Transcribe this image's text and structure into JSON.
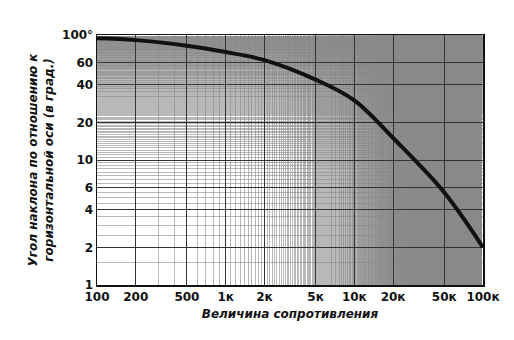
{
  "chart_data": {
    "type": "line",
    "x_label": "Величина сопротивления",
    "y_label": [
      "Угол наклона по отношению к",
      "горизонтальной оси (в град.)"
    ],
    "x": [
      100,
      200,
      500,
      1000,
      2000,
      5000,
      10000,
      20000,
      50000,
      100000
    ],
    "series": [
      {
        "color": "#111111",
        "values": [
          94,
          91,
          82,
          73,
          63,
          44,
          30,
          15,
          5.5,
          2
        ]
      }
    ],
    "log": true,
    "grid": true,
    "xlim": [
      100,
      100000
    ],
    "ylim": [
      1,
      100
    ],
    "xticks": [
      100,
      200,
      500,
      {
        "value": 1000,
        "label": "1к"
      },
      {
        "value": 2000,
        "label": "2к"
      },
      {
        "value": 5000,
        "label": "5к"
      },
      {
        "value": 10000,
        "label": "10к"
      },
      {
        "value": 20000,
        "label": "20к"
      },
      {
        "value": 50000,
        "label": "50к"
      },
      {
        "value": 100000,
        "label": "100к"
      }
    ],
    "yticks": [
      1,
      2,
      4,
      6,
      10,
      20,
      40,
      60,
      {
        "value": 100,
        "label": "100°"
      }
    ]
  }
}
